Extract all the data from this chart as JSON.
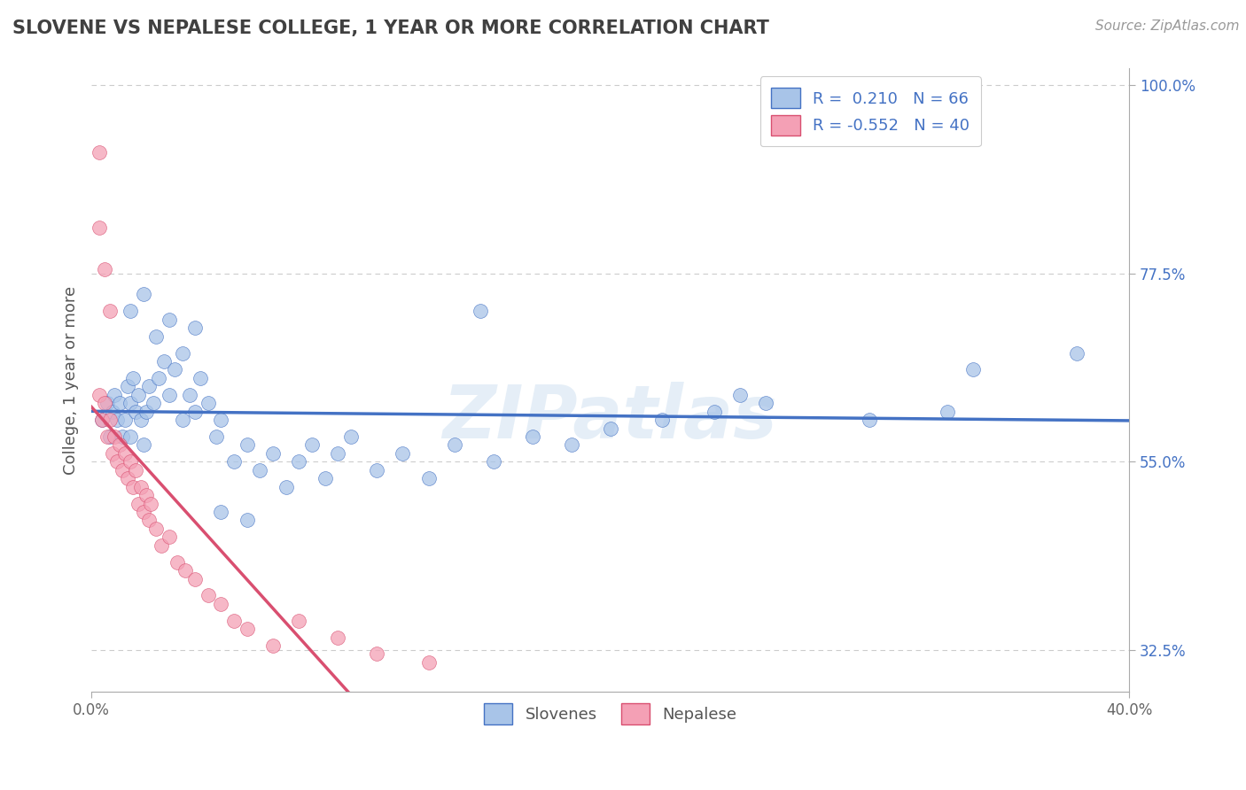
{
  "title": "SLOVENE VS NEPALESE COLLEGE, 1 YEAR OR MORE CORRELATION CHART",
  "source_text": "Source: ZipAtlas.com",
  "ylabel": "College, 1 year or more",
  "xlim": [
    0.0,
    0.4
  ],
  "ylim": [
    0.275,
    1.02
  ],
  "ytick_labels": [
    "32.5%",
    "55.0%",
    "77.5%",
    "100.0%"
  ],
  "ytick_values": [
    0.325,
    0.55,
    0.775,
    1.0
  ],
  "slovene_color": "#a8c4e8",
  "nepalese_color": "#f4a0b5",
  "line_blue": "#4472c4",
  "line_pink": "#d94f70",
  "background_color": "#ffffff",
  "watermark_text": "ZIPatlas",
  "slovene_x": [
    0.004,
    0.006,
    0.007,
    0.008,
    0.009,
    0.01,
    0.011,
    0.012,
    0.013,
    0.014,
    0.015,
    0.015,
    0.016,
    0.017,
    0.018,
    0.019,
    0.02,
    0.021,
    0.022,
    0.024,
    0.026,
    0.028,
    0.03,
    0.032,
    0.035,
    0.038,
    0.04,
    0.042,
    0.045,
    0.048,
    0.05,
    0.055,
    0.06,
    0.065,
    0.07,
    0.075,
    0.08,
    0.085,
    0.09,
    0.095,
    0.1,
    0.11,
    0.12,
    0.13,
    0.14,
    0.155,
    0.17,
    0.185,
    0.2,
    0.22,
    0.24,
    0.26,
    0.3,
    0.33,
    0.015,
    0.02,
    0.025,
    0.03,
    0.035,
    0.04,
    0.05,
    0.06,
    0.15,
    0.25,
    0.34,
    0.38
  ],
  "slovene_y": [
    0.6,
    0.62,
    0.58,
    0.61,
    0.63,
    0.6,
    0.62,
    0.58,
    0.6,
    0.64,
    0.62,
    0.58,
    0.65,
    0.61,
    0.63,
    0.6,
    0.57,
    0.61,
    0.64,
    0.62,
    0.65,
    0.67,
    0.63,
    0.66,
    0.6,
    0.63,
    0.61,
    0.65,
    0.62,
    0.58,
    0.6,
    0.55,
    0.57,
    0.54,
    0.56,
    0.52,
    0.55,
    0.57,
    0.53,
    0.56,
    0.58,
    0.54,
    0.56,
    0.53,
    0.57,
    0.55,
    0.58,
    0.57,
    0.59,
    0.6,
    0.61,
    0.62,
    0.6,
    0.61,
    0.73,
    0.75,
    0.7,
    0.72,
    0.68,
    0.71,
    0.49,
    0.48,
    0.73,
    0.63,
    0.66,
    0.68
  ],
  "nepalese_x": [
    0.003,
    0.004,
    0.005,
    0.006,
    0.007,
    0.008,
    0.009,
    0.01,
    0.011,
    0.012,
    0.013,
    0.014,
    0.015,
    0.016,
    0.017,
    0.018,
    0.019,
    0.02,
    0.021,
    0.022,
    0.023,
    0.025,
    0.027,
    0.03,
    0.033,
    0.036,
    0.04,
    0.045,
    0.05,
    0.055,
    0.06,
    0.07,
    0.08,
    0.095,
    0.11,
    0.13,
    0.003,
    0.005,
    0.007,
    0.003
  ],
  "nepalese_y": [
    0.63,
    0.6,
    0.62,
    0.58,
    0.6,
    0.56,
    0.58,
    0.55,
    0.57,
    0.54,
    0.56,
    0.53,
    0.55,
    0.52,
    0.54,
    0.5,
    0.52,
    0.49,
    0.51,
    0.48,
    0.5,
    0.47,
    0.45,
    0.46,
    0.43,
    0.42,
    0.41,
    0.39,
    0.38,
    0.36,
    0.35,
    0.33,
    0.36,
    0.34,
    0.32,
    0.31,
    0.83,
    0.78,
    0.73,
    0.92
  ]
}
